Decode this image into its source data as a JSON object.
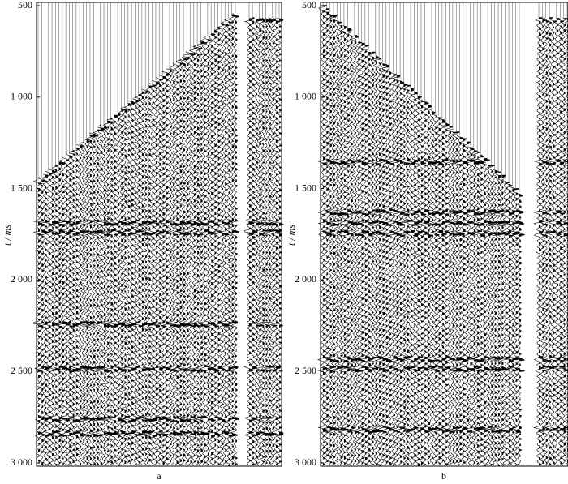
{
  "chart_data": [
    {
      "type": "seismic",
      "ylabel": "t / ms",
      "xlabel": "a",
      "ylim": [
        500,
        3000
      ],
      "yticks": [
        500,
        {
          "value": 1000,
          "label": "1 000"
        },
        {
          "value": 1500,
          "label": "1 500"
        },
        {
          "value": 2000,
          "label": "2 000"
        },
        {
          "value": 2500,
          "label": "2 500"
        },
        {
          "value": 3000,
          "label": "3 000"
        }
      ]
    },
    {
      "type": "seismic",
      "ylabel": "t / ms",
      "xlabel": "b",
      "ylim": [
        500,
        3000
      ],
      "yticks": [
        500,
        {
          "value": 1000,
          "label": "1 000"
        },
        {
          "value": 1500,
          "label": "1 500"
        },
        {
          "value": 2000,
          "label": "2 000"
        },
        {
          "value": 2500,
          "label": "2 500"
        },
        {
          "value": 3000,
          "label": "3 000"
        }
      ]
    }
  ]
}
